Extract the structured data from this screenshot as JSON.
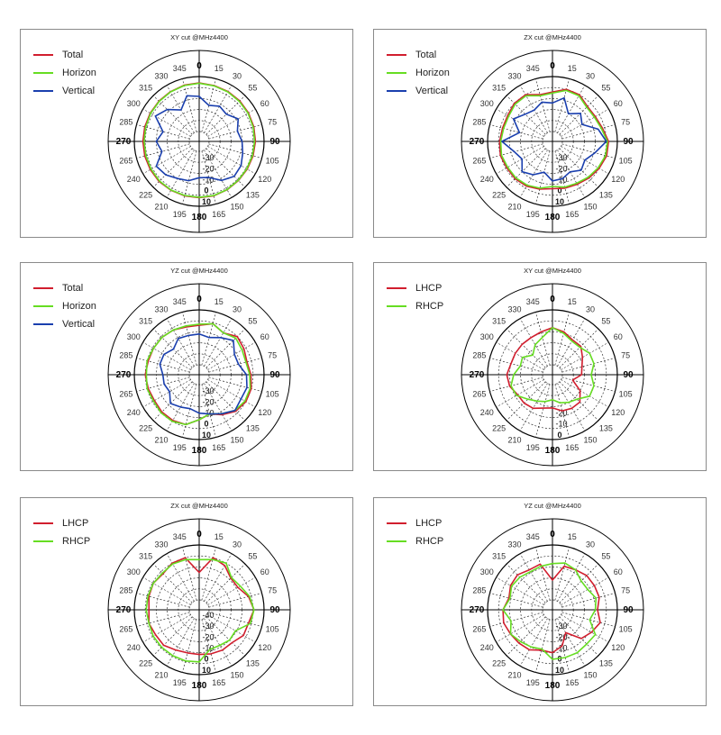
{
  "colors": {
    "total": "#d11e2e",
    "horizon": "#66dd22",
    "vertical": "#1a3fae",
    "lhcp": "#d11e2e",
    "rhcp": "#66dd22"
  },
  "chart_data": [
    {
      "type": "polar-line",
      "title": "XY cut @MHz4400",
      "angle_labels": [
        "0",
        "15",
        "30",
        "55",
        "60",
        "75",
        "90",
        "105",
        "120",
        "135",
        "150",
        "165",
        "180",
        "195",
        "210",
        "225",
        "240",
        "265",
        "270",
        "285",
        "300",
        "315",
        "330",
        "345"
      ],
      "ring_labels": [
        "-30",
        "-20",
        "-10",
        "0",
        "10"
      ],
      "rlim": [
        -40,
        10
      ],
      "legend": "top-left",
      "series": [
        {
          "name": "Total",
          "color": "#d11e2e",
          "values": [
            4.2,
            3.6,
            3.4,
            3.1,
            2.8,
            2.4,
            2.1,
            1.7,
            1.4,
            1.4,
            1.8,
            2.2,
            2.1,
            2.2,
            2.3,
            2.6,
            2.3,
            2.2,
            2.1,
            2.2,
            2.4,
            2.8,
            3.2,
            3.9
          ]
        },
        {
          "name": "Horizon",
          "color": "#66dd22",
          "values": [
            3.9,
            3.3,
            3.0,
            2.6,
            2.3,
            1.8,
            1.4,
            1.1,
            1.0,
            1.2,
            1.6,
            2.0,
            1.9,
            1.9,
            2.1,
            2.0,
            1.5,
            1.2,
            1.1,
            1.4,
            2.0,
            2.5,
            3.0,
            3.6
          ]
        },
        {
          "name": "Vertical",
          "color": "#1a3fae",
          "values": [
            -8,
            -15,
            -12,
            -14,
            -8,
            -13,
            -10,
            -8,
            -5,
            -4,
            -8,
            -15,
            -16,
            -12,
            -10,
            -6,
            -4,
            -14,
            -10,
            -15,
            -3,
            -8,
            -16,
            -6
          ]
        }
      ]
    },
    {
      "type": "polar-line",
      "title": "ZX cut @MHz4400",
      "angle_labels": [
        "0",
        "15",
        "30",
        "55",
        "60",
        "75",
        "90",
        "105",
        "120",
        "135",
        "150",
        "165",
        "180",
        "195",
        "210",
        "225",
        "240",
        "265",
        "270",
        "285",
        "300",
        "315",
        "330",
        "345"
      ],
      "ring_labels": [
        "-30",
        "-20",
        "-10",
        "0",
        "10"
      ],
      "rlim": [
        -40,
        10
      ],
      "legend": "top-left",
      "series": [
        {
          "name": "Total",
          "color": "#d11e2e",
          "values": [
            -4,
            0,
            0,
            -4,
            -4,
            -2,
            2,
            2,
            0,
            -2,
            -4,
            -5,
            -6,
            -4,
            -2,
            -1,
            -1,
            0,
            -1,
            -2,
            -2,
            0,
            0,
            -5
          ]
        },
        {
          "name": "Horizon",
          "color": "#66dd22",
          "values": [
            -5,
            -1,
            -1,
            -5,
            -5,
            -3,
            1,
            1,
            -1,
            -3,
            -5,
            -6,
            -8,
            -5,
            -3,
            -2,
            -2,
            -1,
            -2,
            -3,
            -3,
            -1,
            -1,
            -6
          ]
        },
        {
          "name": "Vertical",
          "color": "#1a3fae",
          "values": [
            -14,
            -8,
            -20,
            -13,
            -18,
            -6,
            0,
            -9,
            -15,
            -12,
            -17,
            -14,
            -13,
            -20,
            -14,
            -10,
            -17,
            -13,
            -3,
            -18,
            -8,
            -14,
            -16,
            -12
          ]
        }
      ]
    },
    {
      "type": "polar-line",
      "title": "YZ cut @MHz4400",
      "angle_labels": [
        "0",
        "15",
        "30",
        "55",
        "60",
        "75",
        "90",
        "105",
        "120",
        "135",
        "150",
        "165",
        "180",
        "195",
        "210",
        "225",
        "240",
        "265",
        "270",
        "285",
        "300",
        "315",
        "330",
        "345"
      ],
      "ring_labels": [
        "-30",
        "-20",
        "-10",
        "0",
        "10"
      ],
      "rlim": [
        -40,
        10
      ],
      "legend": "top-left",
      "series": [
        {
          "name": "Total",
          "color": "#d11e2e",
          "values": [
            -4,
            -1,
            -5,
            0,
            -2,
            -4,
            -2,
            0,
            0,
            -2,
            -7,
            -12,
            -8,
            -2,
            -1,
            -1,
            -2,
            -1,
            0,
            -1,
            -1,
            -1,
            -2,
            -4
          ]
        },
        {
          "name": "Horizon",
          "color": "#66dd22",
          "values": [
            -3,
            -1,
            -5,
            -2,
            -4,
            -5,
            -3,
            -1,
            -1,
            -3,
            -8,
            -12,
            -8,
            -2,
            0,
            0,
            -1,
            0,
            -1,
            0,
            -1,
            -1,
            -2,
            -3
          ]
        },
        {
          "name": "Vertical",
          "color": "#1a3fae",
          "values": [
            -12,
            -14,
            -10,
            -5,
            -12,
            -12,
            -6,
            -4,
            -5,
            -3,
            -8,
            -12,
            -14,
            -17,
            -15,
            -12,
            -18,
            -16,
            -16,
            -12,
            -12,
            -16,
            -11,
            -12
          ]
        }
      ]
    },
    {
      "type": "polar-line",
      "title": "XY cut @MHz4400",
      "angle_labels": [
        "0",
        "15",
        "30",
        "55",
        "60",
        "75",
        "90",
        "105",
        "120",
        "135",
        "150",
        "165",
        "180",
        "195",
        "210",
        "225",
        "240",
        "265",
        "270",
        "285",
        "300",
        "315",
        "330",
        "345"
      ],
      "ring_labels": [
        "-20",
        "-10",
        "0"
      ],
      "rlim": [
        -30,
        10
      ],
      "legend": "top-left",
      "series": [
        {
          "name": "LHCP",
          "color": "#d11e2e",
          "values": [
            -3,
            -5,
            -8,
            -8,
            -12,
            -15,
            -16,
            -22,
            -14,
            -9,
            -9,
            -10,
            -13,
            -12,
            -9,
            -8,
            -8,
            -5,
            -4,
            -6,
            -6,
            -6,
            -6,
            -5
          ]
        },
        {
          "name": "RHCP",
          "color": "#66dd22",
          "values": [
            -3,
            -6,
            -9,
            -9,
            -6,
            -6,
            -9,
            -6,
            -6,
            -12,
            -14,
            -16,
            -19,
            -17,
            -15,
            -12,
            -7,
            -6,
            -9,
            -13,
            -12,
            -17,
            -12,
            -9
          ]
        }
      ]
    },
    {
      "type": "polar-line",
      "title": "ZX cut @MHz4400",
      "angle_labels": [
        "0",
        "15",
        "30",
        "55",
        "60",
        "75",
        "90",
        "105",
        "120",
        "135",
        "150",
        "165",
        "180",
        "195",
        "210",
        "225",
        "240",
        "265",
        "270",
        "285",
        "300",
        "315",
        "330",
        "345"
      ],
      "ring_labels": [
        "-40",
        "-30",
        "-20",
        "-10",
        "0",
        "10"
      ],
      "rlim": [
        -50,
        10
      ],
      "legend": "top-left",
      "series": [
        {
          "name": "LHCP",
          "color": "#d11e2e",
          "values": [
            -20,
            -2,
            -5,
            -12,
            -12,
            -5,
            -1,
            -5,
            -5,
            -10,
            -10,
            -11,
            -12,
            -12,
            -10,
            -6,
            -6,
            -4,
            -6,
            -4,
            -3,
            -5,
            -2,
            -2
          ]
        },
        {
          "name": "RHCP",
          "color": "#66dd22",
          "values": [
            -6,
            -4,
            -2,
            -11,
            -9,
            -4,
            -1,
            -3,
            -15,
            -14,
            -16,
            -16,
            -4,
            -3,
            -3,
            -3,
            -3,
            -4,
            -3,
            -3,
            -3,
            -4,
            -3,
            -4
          ]
        }
      ]
    },
    {
      "type": "polar-line",
      "title": "YZ cut @MHz4400",
      "angle_labels": [
        "0",
        "15",
        "30",
        "55",
        "60",
        "75",
        "90",
        "105",
        "120",
        "135",
        "150",
        "165",
        "180",
        "195",
        "210",
        "225",
        "240",
        "265",
        "270",
        "285",
        "300",
        "315",
        "330",
        "345"
      ],
      "ring_labels": [
        "-30",
        "-20",
        "-10",
        "0",
        "10"
      ],
      "rlim": [
        -40,
        10
      ],
      "legend": "top-left",
      "series": [
        {
          "name": "LHCP",
          "color": "#d11e2e",
          "values": [
            -22,
            -8,
            -7,
            -5,
            -5,
            -5,
            -8,
            -4,
            -8,
            -12,
            -25,
            -15,
            -10,
            -11,
            -7,
            -6,
            -5,
            -3,
            -4,
            -8,
            -5,
            -4,
            -7,
            -6
          ]
        },
        {
          "name": "RHCP",
          "color": "#66dd22",
          "values": [
            -7,
            -5,
            -7,
            -12,
            -12,
            -8,
            -10,
            -14,
            -4,
            -5,
            -4,
            -4,
            -4,
            -12,
            -10,
            -8,
            -5,
            -10,
            -4,
            -9,
            -6,
            -7,
            -9,
            -8
          ]
        }
      ]
    }
  ]
}
